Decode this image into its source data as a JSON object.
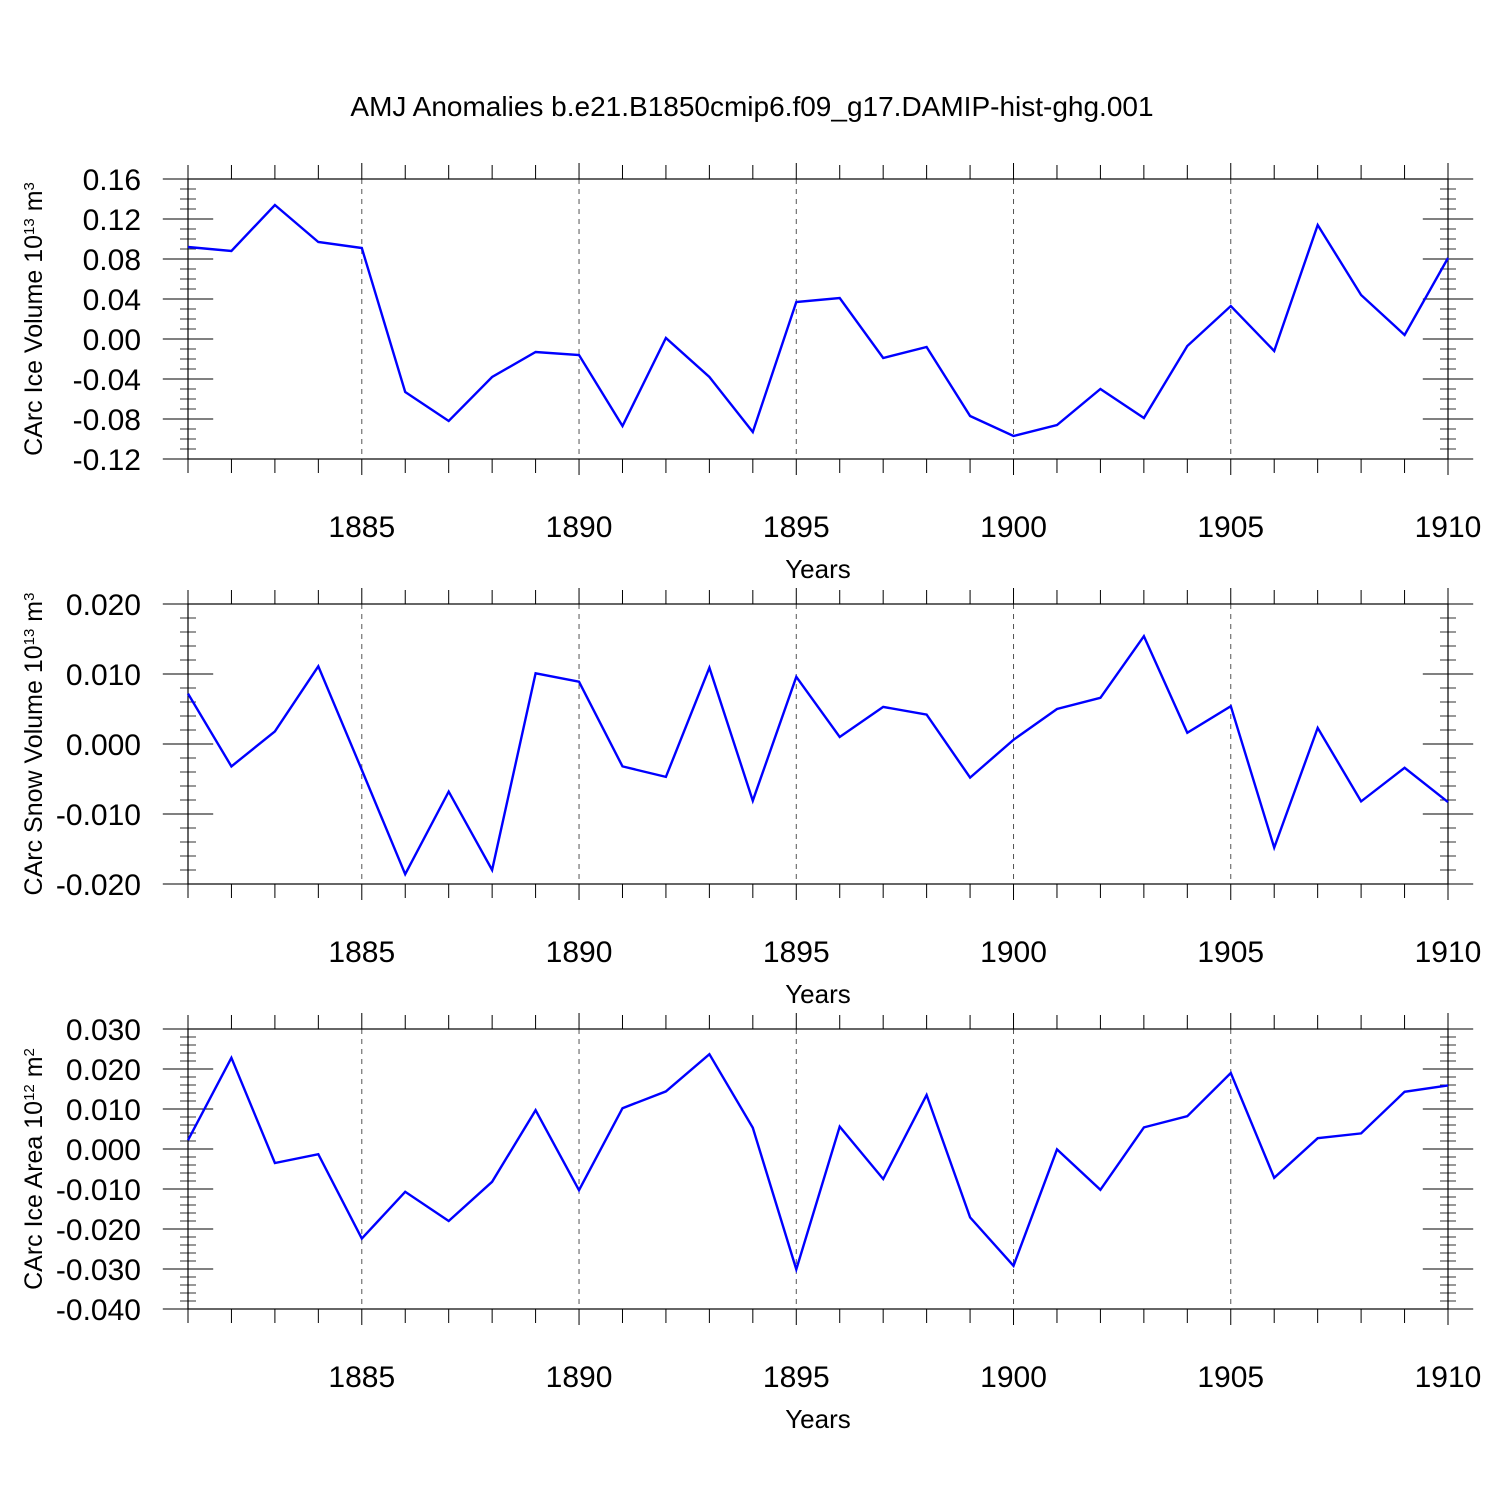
{
  "title": "AMJ Anomalies b.e21.B1850cmip6.f09_g17.DAMIP-hist-ghg.001",
  "chart_data": [
    {
      "type": "line",
      "title": "",
      "xlabel": "Years",
      "ylabel": {
        "prefix": "CArc Ice Volume 10",
        "exp": "13",
        "unit": " m",
        "unit_exp": "3"
      },
      "xlim": [
        1881,
        1910
      ],
      "ylim": [
        -0.12,
        0.16
      ],
      "xticks": [
        1885,
        1890,
        1895,
        1900,
        1905,
        1910
      ],
      "xtick_labels": [
        "1885",
        "1890",
        "1895",
        "1900",
        "1905",
        "1910"
      ],
      "yticks": [
        -0.12,
        -0.08,
        -0.04,
        0.0,
        0.04,
        0.08,
        0.12,
        0.16
      ],
      "ytick_labels": [
        "-0.12",
        "-0.08",
        "-0.04",
        "0.00",
        "0.04",
        "0.08",
        "0.12",
        "0.16"
      ],
      "ytick_minor_step": 0.01,
      "series": [
        {
          "name": "CArc Ice Volume",
          "color": "#0000ff",
          "x": [
            1881,
            1882,
            1883,
            1884,
            1885,
            1886,
            1887,
            1888,
            1889,
            1890,
            1891,
            1892,
            1893,
            1894,
            1895,
            1896,
            1897,
            1898,
            1899,
            1900,
            1901,
            1902,
            1903,
            1904,
            1905,
            1906,
            1907,
            1908,
            1909,
            1910
          ],
          "values": [
            0.092,
            0.088,
            0.134,
            0.097,
            0.091,
            -0.053,
            -0.082,
            -0.038,
            -0.013,
            -0.016,
            -0.087,
            0.001,
            -0.038,
            -0.093,
            0.037,
            0.041,
            -0.019,
            -0.008,
            -0.077,
            -0.097,
            -0.086,
            -0.05,
            -0.079,
            -0.007,
            0.033,
            -0.012,
            0.114,
            0.044,
            0.004,
            0.081
          ]
        }
      ]
    },
    {
      "type": "line",
      "title": "",
      "xlabel": "Years",
      "ylabel": {
        "prefix": "CArc Snow Volume 10",
        "exp": "13",
        "unit": " m",
        "unit_exp": "3"
      },
      "xlim": [
        1881,
        1910
      ],
      "ylim": [
        -0.02,
        0.02
      ],
      "xticks": [
        1885,
        1890,
        1895,
        1900,
        1905,
        1910
      ],
      "xtick_labels": [
        "1885",
        "1890",
        "1895",
        "1900",
        "1905",
        "1910"
      ],
      "yticks": [
        -0.02,
        -0.01,
        0.0,
        0.01,
        0.02
      ],
      "ytick_labels": [
        "-0.020",
        "-0.010",
        "0.000",
        "0.010",
        "0.020"
      ],
      "ytick_minor_step": 0.002,
      "series": [
        {
          "name": "CArc Snow Volume",
          "color": "#0000ff",
          "x": [
            1881,
            1882,
            1883,
            1884,
            1885,
            1886,
            1887,
            1888,
            1889,
            1890,
            1891,
            1892,
            1893,
            1894,
            1895,
            1896,
            1897,
            1898,
            1899,
            1900,
            1901,
            1902,
            1903,
            1904,
            1905,
            1906,
            1907,
            1908,
            1909,
            1910
          ],
          "values": [
            0.0072,
            -0.0032,
            0.0018,
            0.0111,
            -0.0037,
            -0.0186,
            -0.0068,
            -0.018,
            0.0101,
            0.0089,
            -0.0032,
            -0.0047,
            0.0109,
            -0.0081,
            0.0096,
            0.001,
            0.0053,
            0.0042,
            -0.0048,
            0.0006,
            0.005,
            0.0066,
            0.0154,
            0.0016,
            0.0054,
            -0.0148,
            0.0023,
            -0.0082,
            -0.0034,
            -0.0083
          ]
        }
      ]
    },
    {
      "type": "line",
      "title": "",
      "xlabel": "Years",
      "ylabel": {
        "prefix": "CArc Ice Area 10",
        "exp": "12",
        "unit": " m",
        "unit_exp": "2"
      },
      "xlim": [
        1881,
        1910
      ],
      "ylim": [
        -0.04,
        0.03
      ],
      "xticks": [
        1885,
        1890,
        1895,
        1900,
        1905,
        1910
      ],
      "xtick_labels": [
        "1885",
        "1890",
        "1895",
        "1900",
        "1905",
        "1910"
      ],
      "yticks": [
        -0.04,
        -0.03,
        -0.02,
        -0.01,
        0.0,
        0.01,
        0.02,
        0.03
      ],
      "ytick_labels": [
        "-0.040",
        "-0.030",
        "-0.020",
        "-0.010",
        "0.000",
        "0.010",
        "0.020",
        "0.030"
      ],
      "ytick_minor_step": 0.002,
      "series": [
        {
          "name": "CArc Ice Area",
          "color": "#0000ff",
          "x": [
            1881,
            1882,
            1883,
            1884,
            1885,
            1886,
            1887,
            1888,
            1889,
            1890,
            1891,
            1892,
            1893,
            1894,
            1895,
            1896,
            1897,
            1898,
            1899,
            1900,
            1901,
            1902,
            1903,
            1904,
            1905,
            1906,
            1907,
            1908,
            1909,
            1910
          ],
          "values": [
            0.0022,
            0.0228,
            -0.0035,
            -0.0013,
            -0.0224,
            -0.0107,
            -0.018,
            -0.0082,
            0.0097,
            -0.0103,
            0.0102,
            0.0144,
            0.0237,
            0.0053,
            -0.0301,
            0.0056,
            -0.0075,
            0.0135,
            -0.0171,
            -0.0292,
            -0.0001,
            -0.0102,
            0.0054,
            0.0082,
            0.019,
            -0.0072,
            0.0027,
            0.0039,
            0.0143,
            0.0159
          ]
        }
      ]
    }
  ]
}
